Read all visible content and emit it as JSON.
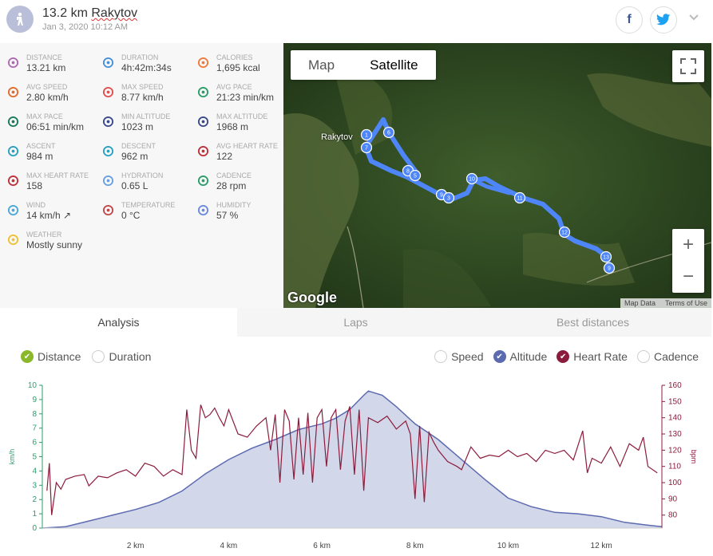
{
  "header": {
    "title_distance": "13.2 km",
    "title_place": "Rakytov",
    "datetime": "Jan 3, 2020 10:12 AM",
    "facebook_label": "f",
    "twitter_label": "🐦",
    "expand_label": "⌄"
  },
  "stats": [
    {
      "label": "DISTANCE",
      "value": "13.21 km",
      "icon": "distance-icon",
      "color": "#b06ab3"
    },
    {
      "label": "DURATION",
      "value": "4h:42m:34s",
      "icon": "stopwatch-icon",
      "color": "#4a90d9"
    },
    {
      "label": "CALORIES",
      "value": "1,695 kcal",
      "icon": "flame-icon",
      "color": "#f07a3a"
    },
    {
      "label": "AVG SPEED",
      "value": "2.80 km/h",
      "icon": "speedometer-icon",
      "color": "#e46a2a"
    },
    {
      "label": "MAX SPEED",
      "value": "8.77 km/h",
      "icon": "speedometer-icon",
      "color": "#e05050"
    },
    {
      "label": "AVG PACE",
      "value": "21:23 min/km",
      "icon": "pace-gauge-icon",
      "color": "#2a9d6a"
    },
    {
      "label": "MAX PACE",
      "value": "06:51 min/km",
      "icon": "pace-gauge-icon",
      "color": "#1a7a5a"
    },
    {
      "label": "MIN ALTITUDE",
      "value": "1023 m",
      "icon": "mountain-icon",
      "color": "#3b4a8a"
    },
    {
      "label": "MAX ALTITUDE",
      "value": "1968 m",
      "icon": "mountain-icon",
      "color": "#3b4a8a"
    },
    {
      "label": "ASCENT",
      "value": "984 m",
      "icon": "ascent-icon",
      "color": "#2aa0c0"
    },
    {
      "label": "DESCENT",
      "value": "962 m",
      "icon": "descent-icon",
      "color": "#2aa0c0"
    },
    {
      "label": "AVG HEART RATE",
      "value": "122",
      "icon": "heart-icon",
      "color": "#c0303a"
    },
    {
      "label": "MAX HEART RATE",
      "value": "158",
      "icon": "heart-icon",
      "color": "#c0303a"
    },
    {
      "label": "HYDRATION",
      "value": "0.65 L",
      "icon": "drops-icon",
      "color": "#6aa0e0"
    },
    {
      "label": "CADENCE",
      "value": "28 rpm",
      "icon": "cadence-icon",
      "color": "#2a9d6a"
    },
    {
      "label": "WIND",
      "value": "14 km/h ↗",
      "icon": "wind-icon",
      "color": "#4aa8d8"
    },
    {
      "label": "TEMPERATURE",
      "value": "0 °C",
      "icon": "thermometer-icon",
      "color": "#c04a4a"
    },
    {
      "label": "HUMIDITY",
      "value": "57 %",
      "icon": "humidity-icon",
      "color": "#6a8ae0"
    },
    {
      "label": "WEATHER",
      "value": "Mostly sunny",
      "icon": "sun-icon",
      "color": "#f0c030"
    }
  ],
  "map": {
    "map_label": "Map",
    "satellite_label": "Satellite",
    "place_label": "Rakytov",
    "google_label": "Google",
    "map_data_label": "Map Data",
    "terms_label": "Terms of Use",
    "zoom_in": "+",
    "zoom_out": "−",
    "markers": [
      "1",
      "6",
      "7",
      "8",
      "5",
      "9",
      "3",
      "10",
      "11",
      "12",
      "13",
      "9"
    ]
  },
  "tabs": [
    {
      "label": "Analysis",
      "active": true
    },
    {
      "label": "Laps",
      "active": false
    },
    {
      "label": "Best distances",
      "active": false
    }
  ],
  "x_axis_toggles": [
    {
      "label": "Distance",
      "checked": true,
      "color": "#8ab82a"
    },
    {
      "label": "Duration",
      "checked": false,
      "color": ""
    }
  ],
  "series_toggles": [
    {
      "label": "Speed",
      "checked": false,
      "color": ""
    },
    {
      "label": "Altitude",
      "checked": true,
      "color": "#5c6bb0"
    },
    {
      "label": "Heart Rate",
      "checked": true,
      "color": "#8c1c3c"
    },
    {
      "label": "Cadence",
      "checked": false,
      "color": ""
    }
  ],
  "chart_data": {
    "type": "line",
    "xlabel": "",
    "x_ticks": [
      "2 km",
      "4 km",
      "6 km",
      "8 km",
      "10 km",
      "12 km"
    ],
    "x_tick_values": [
      2,
      4,
      6,
      8,
      10,
      12
    ],
    "xlim": [
      0,
      13.3
    ],
    "ylabel_left": "km/h",
    "ylim_left": [
      0,
      10
    ],
    "y_ticks_left": [
      "0",
      "1",
      "2",
      "3",
      "4",
      "5",
      "6",
      "7",
      "8",
      "9",
      "10"
    ],
    "ylabel_right": "bpm",
    "ylim_right": [
      72,
      160
    ],
    "y_ticks_right": [
      "80",
      "90",
      "100",
      "110",
      "120",
      "130",
      "140",
      "150",
      "160"
    ],
    "y_tick_values_right": [
      80,
      90,
      100,
      110,
      120,
      130,
      140,
      150,
      160
    ],
    "altitude": {
      "name": "Altitude",
      "color": "#5c6bb0",
      "fill": "#d3d7ea",
      "x": [
        0,
        0.5,
        1,
        1.5,
        2,
        2.5,
        3,
        3.5,
        4,
        4.5,
        5,
        5.5,
        6,
        6.3,
        6.6,
        6.9,
        7.0,
        7.3,
        7.6,
        8,
        8.5,
        9,
        9.5,
        10,
        10.5,
        11,
        11.5,
        12,
        12.5,
        13,
        13.3
      ],
      "y": [
        0.0,
        0.1,
        0.5,
        0.9,
        1.3,
        1.8,
        2.6,
        3.8,
        4.8,
        5.6,
        6.2,
        6.9,
        7.3,
        7.7,
        8.3,
        9.3,
        9.6,
        9.3,
        8.5,
        7.3,
        6.2,
        4.8,
        3.4,
        2.1,
        1.5,
        1.1,
        1.0,
        0.8,
        0.4,
        0.2,
        0.1
      ]
    },
    "heart_rate": {
      "name": "Heart Rate",
      "color": "#8c1c3c",
      "x": [
        0.1,
        0.15,
        0.2,
        0.3,
        0.4,
        0.5,
        0.7,
        0.9,
        1.0,
        1.2,
        1.4,
        1.6,
        1.8,
        2.0,
        2.2,
        2.4,
        2.6,
        2.8,
        3.0,
        3.1,
        3.2,
        3.3,
        3.4,
        3.5,
        3.6,
        3.7,
        3.8,
        3.9,
        4.0,
        4.2,
        4.4,
        4.6,
        4.8,
        4.9,
        5.0,
        5.1,
        5.2,
        5.3,
        5.4,
        5.5,
        5.6,
        5.7,
        5.8,
        5.9,
        6.0,
        6.1,
        6.2,
        6.3,
        6.4,
        6.5,
        6.6,
        6.7,
        6.8,
        6.9,
        7.0,
        7.2,
        7.4,
        7.6,
        7.8,
        7.9,
        8.0,
        8.1,
        8.2,
        8.3,
        8.4,
        8.5,
        8.7,
        8.9,
        9.0,
        9.2,
        9.4,
        9.6,
        9.8,
        10.0,
        10.2,
        10.4,
        10.6,
        10.8,
        11.0,
        11.2,
        11.4,
        11.6,
        11.7,
        11.8,
        12.0,
        12.2,
        12.4,
        12.6,
        12.8,
        12.9,
        13.0,
        13.2
      ],
      "y": [
        95,
        112,
        80,
        100,
        96,
        102,
        104,
        105,
        98,
        104,
        103,
        106,
        108,
        104,
        112,
        110,
        104,
        108,
        105,
        145,
        120,
        115,
        148,
        140,
        142,
        146,
        140,
        135,
        145,
        130,
        128,
        135,
        140,
        120,
        142,
        100,
        145,
        138,
        102,
        140,
        105,
        143,
        100,
        140,
        145,
        110,
        140,
        145,
        108,
        138,
        147,
        105,
        145,
        95,
        140,
        137,
        141,
        133,
        138,
        130,
        90,
        135,
        88,
        131,
        125,
        120,
        113,
        110,
        108,
        122,
        115,
        117,
        116,
        120,
        116,
        118,
        113,
        120,
        118,
        120,
        114,
        132,
        106,
        115,
        112,
        122,
        110,
        124,
        120,
        128,
        110,
        106
      ]
    }
  }
}
